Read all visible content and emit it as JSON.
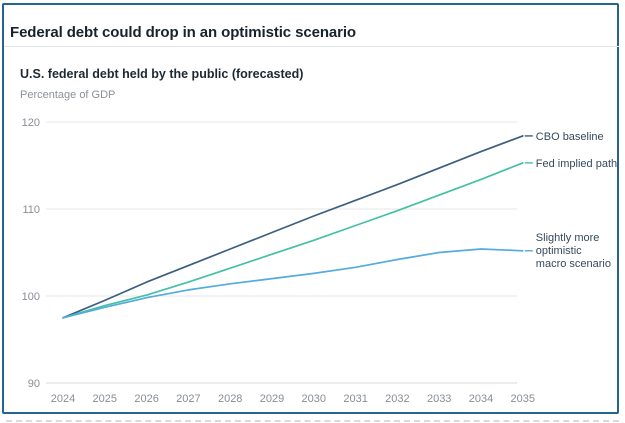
{
  "header": {
    "title": "Federal debt could drop in an optimistic scenario"
  },
  "chart": {
    "subtitle": "U.S. federal debt held by the public (forecasted)",
    "unit_label": "Percentage of GDP"
  },
  "colors": {
    "frame_border": "#26648e",
    "grid": "#e7e7e7",
    "axis_line": "#d8d8d8",
    "axis_text": "#878e95",
    "legend_text": "#35495c",
    "cbo_line": "#3a5f82",
    "fed_line": "#45bfa6",
    "optimistic_line": "#54abdd"
  },
  "chart_data": {
    "type": "line",
    "title": "Federal debt could drop in an optimistic scenario",
    "subtitle": "U.S. federal debt held by the public (forecasted)",
    "ylabel": "Percentage of GDP",
    "xlabel": "",
    "x": [
      2024,
      2025,
      2026,
      2027,
      2028,
      2029,
      2030,
      2031,
      2032,
      2033,
      2034,
      2035
    ],
    "yticks": [
      90,
      100,
      110,
      120
    ],
    "ylim": [
      90,
      120
    ],
    "grid": true,
    "legend_position": "right-annotations",
    "series": [
      {
        "name": "CBO baseline",
        "label_lines": [
          "CBO baseline"
        ],
        "color": "#3a5f82",
        "values": [
          97.5,
          99.5,
          101.6,
          103.5,
          105.4,
          107.3,
          109.2,
          111.0,
          112.8,
          114.7,
          116.6,
          118.4
        ]
      },
      {
        "name": "Fed implied path",
        "label_lines": [
          "Fed implied path"
        ],
        "color": "#45bfa6",
        "values": [
          97.5,
          98.9,
          100.1,
          101.6,
          103.2,
          104.8,
          106.4,
          108.1,
          109.8,
          111.6,
          113.4,
          115.3
        ]
      },
      {
        "name": "Slightly more optimistic macro scenario",
        "label_lines": [
          "Slightly more",
          "optimistic",
          "macro scenario"
        ],
        "color": "#54abdd",
        "values": [
          97.5,
          98.7,
          99.8,
          100.7,
          101.4,
          102.0,
          102.6,
          103.3,
          104.2,
          105.0,
          105.4,
          105.2
        ]
      }
    ]
  }
}
